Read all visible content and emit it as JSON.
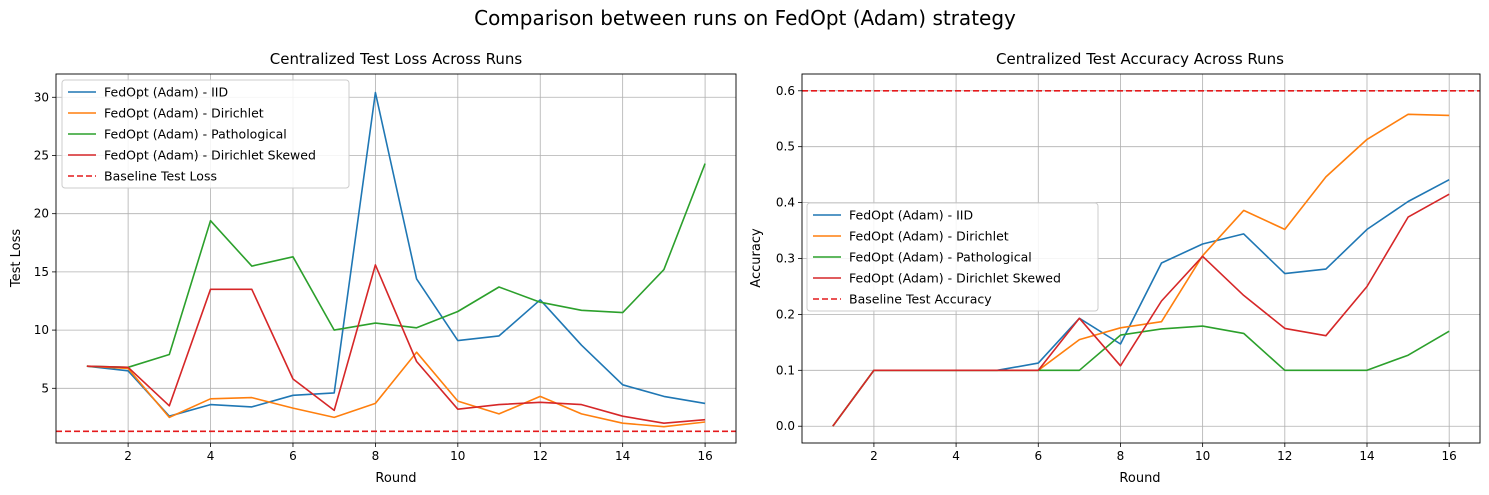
{
  "suptitle": "Comparison between runs on FedOpt (Adam) strategy",
  "colors": {
    "iid": "#1f77b4",
    "dirichlet": "#ff7f0e",
    "pathological": "#2ca02c",
    "dirichlet_skewed": "#d62728",
    "baseline": "#e41a1c",
    "grid": "#b0b0b0"
  },
  "chart_data": [
    {
      "type": "line",
      "title": "Centralized Test Loss Across Runs",
      "xlabel": "Round",
      "ylabel": "Test Loss",
      "xlim": [
        0.25,
        16.75
      ],
      "ylim": [
        0.3,
        32
      ],
      "xticks": [
        2,
        4,
        6,
        8,
        10,
        12,
        14,
        16
      ],
      "yticks": [
        5,
        10,
        15,
        20,
        25,
        30
      ],
      "grid": true,
      "legend_position": "top-left",
      "x": [
        1,
        2,
        3,
        4,
        5,
        6,
        7,
        8,
        9,
        10,
        11,
        12,
        13,
        14,
        15,
        16
      ],
      "series": [
        {
          "name": "FedOpt (Adam) - IID",
          "color_key": "iid",
          "values": [
            6.9,
            6.5,
            2.6,
            3.6,
            3.4,
            4.4,
            4.6,
            30.4,
            14.4,
            9.1,
            9.5,
            12.6,
            8.7,
            5.3,
            4.3,
            3.7
          ]
        },
        {
          "name": "FedOpt (Adam) - Dirichlet",
          "color_key": "dirichlet",
          "values": [
            6.9,
            6.7,
            2.5,
            4.1,
            4.2,
            3.3,
            2.5,
            3.7,
            8.1,
            3.9,
            2.8,
            4.3,
            2.8,
            2.0,
            1.7,
            2.1
          ]
        },
        {
          "name": "FedOpt (Adam) - Pathological",
          "color_key": "pathological",
          "values": [
            6.9,
            6.8,
            7.9,
            19.4,
            15.5,
            16.3,
            10.0,
            10.6,
            10.2,
            11.6,
            13.7,
            12.4,
            11.7,
            11.5,
            15.2,
            24.3
          ]
        },
        {
          "name": "FedOpt (Adam) - Dirichlet Skewed",
          "color_key": "dirichlet_skewed",
          "values": [
            6.9,
            6.8,
            3.5,
            13.5,
            13.5,
            5.8,
            3.1,
            15.6,
            7.3,
            3.2,
            3.6,
            3.8,
            3.6,
            2.6,
            2.0,
            2.3
          ]
        }
      ],
      "baseline": {
        "name": "Baseline Test Loss",
        "value": 1.3
      }
    },
    {
      "type": "line",
      "title": "Centralized Test Accuracy Across Runs",
      "xlabel": "Round",
      "ylabel": "Accuracy",
      "xlim": [
        0.25,
        16.75
      ],
      "ylim": [
        -0.03,
        0.63
      ],
      "xticks": [
        2,
        4,
        6,
        8,
        10,
        12,
        14,
        16
      ],
      "yticks": [
        0.0,
        0.1,
        0.2,
        0.3,
        0.4,
        0.5,
        0.6
      ],
      "ytick_labels": [
        "0.0",
        "0.1",
        "0.2",
        "0.3",
        "0.4",
        "0.5",
        "0.6"
      ],
      "grid": true,
      "legend_position": "center-left",
      "x": [
        1,
        2,
        3,
        4,
        5,
        6,
        7,
        8,
        9,
        10,
        11,
        12,
        13,
        14,
        15,
        16
      ],
      "series": [
        {
          "name": "FedOpt (Adam) - IID",
          "color_key": "iid",
          "values": [
            0.0,
            0.1,
            0.1,
            0.1,
            0.1,
            0.113,
            0.193,
            0.147,
            0.292,
            0.326,
            0.344,
            0.273,
            0.281,
            0.352,
            0.402,
            0.441
          ]
        },
        {
          "name": "FedOpt (Adam) - Dirichlet",
          "color_key": "dirichlet",
          "values": [
            0.0,
            0.1,
            0.1,
            0.1,
            0.1,
            0.1,
            0.155,
            0.176,
            0.187,
            0.305,
            0.386,
            0.352,
            0.446,
            0.513,
            0.558,
            0.556
          ]
        },
        {
          "name": "FedOpt (Adam) - Pathological",
          "color_key": "pathological",
          "values": [
            0.0,
            0.1,
            0.1,
            0.1,
            0.1,
            0.1,
            0.1,
            0.163,
            0.174,
            0.179,
            0.166,
            0.1,
            0.1,
            0.1,
            0.127,
            0.17
          ]
        },
        {
          "name": "FedOpt (Adam) - Dirichlet Skewed",
          "color_key": "dirichlet_skewed",
          "values": [
            0.0,
            0.1,
            0.1,
            0.1,
            0.1,
            0.1,
            0.193,
            0.108,
            0.224,
            0.304,
            0.234,
            0.175,
            0.162,
            0.25,
            0.374,
            0.415
          ]
        }
      ],
      "baseline": {
        "name": "Baseline Test Accuracy",
        "value": 0.6
      }
    }
  ]
}
